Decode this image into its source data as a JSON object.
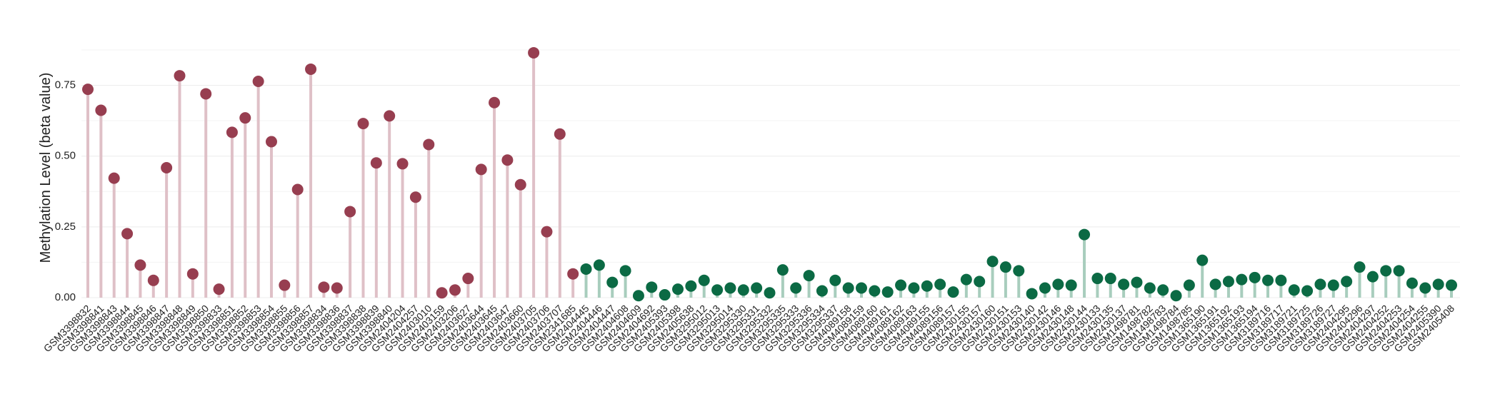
{
  "chart_data": {
    "type": "lollipop",
    "y_label": "Methylation Level (beta value)",
    "categories": [
      "GSM3398832",
      "GSM3398841",
      "GSM3398843",
      "GSM3398844",
      "GSM3398845",
      "GSM3398846",
      "GSM3398847",
      "GSM3398848",
      "GSM3398849",
      "GSM3398850",
      "GSM3398833",
      "GSM3398851",
      "GSM3398852",
      "GSM3398853",
      "GSM3398854",
      "GSM3398855",
      "GSM3398856",
      "GSM3398857",
      "GSM3398834",
      "GSM3398836",
      "GSM3398837",
      "GSM3398838",
      "GSM3398839",
      "GSM3398840",
      "GSM2404204",
      "GSM2404257",
      "GSM2403010",
      "GSM2403159",
      "GSM2403206",
      "GSM2403627",
      "GSM2403644",
      "GSM2403645",
      "GSM2403647",
      "GSM2403660",
      "GSM2403705",
      "GSM2403706",
      "GSM2403707",
      "GSM2341685",
      "GSM2404445",
      "GSM2404446",
      "GSM2404447",
      "GSM2404608",
      "GSM2404609",
      "GSM2404692",
      "GSM2405393",
      "GSM2405398",
      "GSM2405638",
      "GSM3295012",
      "GSM3295013",
      "GSM3295014",
      "GSM3295330",
      "GSM3295331",
      "GSM3295332",
      "GSM3295335",
      "GSM3295333",
      "GSM3295336",
      "GSM3295334",
      "GSM3295337",
      "GSM4089158",
      "GSM4089159",
      "GSM4089160",
      "GSM4089161",
      "GSM4089162",
      "GSM4089163",
      "GSM4089155",
      "GSM4089156",
      "GSM4089157",
      "GSM2430155",
      "GSM2430157",
      "GSM2430160",
      "GSM2430151",
      "GSM2430153",
      "GSM2430140",
      "GSM2430142",
      "GSM2430146",
      "GSM2430148",
      "GSM2430144",
      "GSM2430133",
      "GSM2430135",
      "GSM2430137",
      "GSM1498781",
      "GSM1498782",
      "GSM1498783",
      "GSM1498784",
      "GSM1498785",
      "GSM1365190",
      "GSM1365191",
      "GSM1365192",
      "GSM1365193",
      "GSM1365194",
      "GSM3189716",
      "GSM3189717",
      "GSM3189721",
      "GSM3189725",
      "GSM3189726",
      "GSM3189727",
      "GSM2404295",
      "GSM2404296",
      "GSM2404297",
      "GSM2404252",
      "GSM2404253",
      "GSM2404254",
      "GSM2404255",
      "GSM2405390",
      "GSM2405408"
    ],
    "series": [
      {
        "color": "#973e50",
        "stem_color": "#dfc0c7",
        "values": [
          0.736,
          0.662,
          0.422,
          0.226,
          0.115,
          0.061,
          0.459,
          0.784,
          0.084,
          0.72,
          0.03,
          0.584,
          0.635,
          0.764,
          0.551,
          0.044,
          0.382,
          0.807,
          0.037,
          0.034,
          0.304,
          0.615,
          0.476,
          0.642,
          0.473,
          0.355,
          0.541,
          0.017,
          0.027,
          0.068,
          0.453,
          0.689,
          0.486,
          0.399,
          0.865,
          0.233,
          0.578,
          0.084,
          null,
          null,
          null,
          null,
          null,
          null,
          null,
          null,
          null,
          null,
          null,
          null,
          null,
          null,
          null,
          null,
          null,
          null,
          null,
          null,
          null,
          null,
          null,
          null,
          null,
          null,
          null,
          null,
          null,
          null,
          null,
          null,
          null,
          null,
          null,
          null,
          null,
          null,
          null,
          null,
          null,
          null,
          null,
          null,
          null,
          null,
          null,
          null,
          null,
          null,
          null,
          null,
          null,
          null,
          null,
          null,
          null,
          null,
          null,
          null,
          null,
          null,
          null,
          null,
          null,
          null,
          null
        ]
      },
      {
        "color": "#0b6a44",
        "stem_color": "#a8cdbd",
        "values": [
          null,
          null,
          null,
          null,
          null,
          null,
          null,
          null,
          null,
          null,
          null,
          null,
          null,
          null,
          null,
          null,
          null,
          null,
          null,
          null,
          null,
          null,
          null,
          null,
          null,
          null,
          null,
          null,
          null,
          null,
          null,
          null,
          null,
          null,
          null,
          null,
          null,
          null,
          0.101,
          0.115,
          0.054,
          0.095,
          0.007,
          0.037,
          0.01,
          0.03,
          0.041,
          0.061,
          0.027,
          0.034,
          0.027,
          0.034,
          0.017,
          0.098,
          0.034,
          0.078,
          0.024,
          0.061,
          0.034,
          0.034,
          0.024,
          0.02,
          0.044,
          0.034,
          0.041,
          0.047,
          0.02,
          0.064,
          0.057,
          0.128,
          0.108,
          0.095,
          0.014,
          0.034,
          0.047,
          0.044,
          0.223,
          0.068,
          0.068,
          0.047,
          0.054,
          0.034,
          0.027,
          0.007,
          0.044,
          0.132,
          0.047,
          0.057,
          0.064,
          0.071,
          0.061,
          0.061,
          0.027,
          0.024,
          0.047,
          0.044,
          0.057,
          0.108,
          0.074,
          0.095,
          0.095,
          0.051,
          0.034,
          0.047,
          0.044
        ]
      }
    ],
    "ylim": [
      0,
      0.875
    ],
    "yticks": [
      {
        "value": 0,
        "label": "0.00"
      },
      {
        "value": 0.25,
        "label": "0.25"
      },
      {
        "value": 0.5,
        "label": "0.50"
      },
      {
        "value": 0.75,
        "label": "0.75"
      }
    ],
    "minor_yticks": [
      0.125,
      0.375,
      0.625,
      0.875
    ],
    "grid": true
  }
}
